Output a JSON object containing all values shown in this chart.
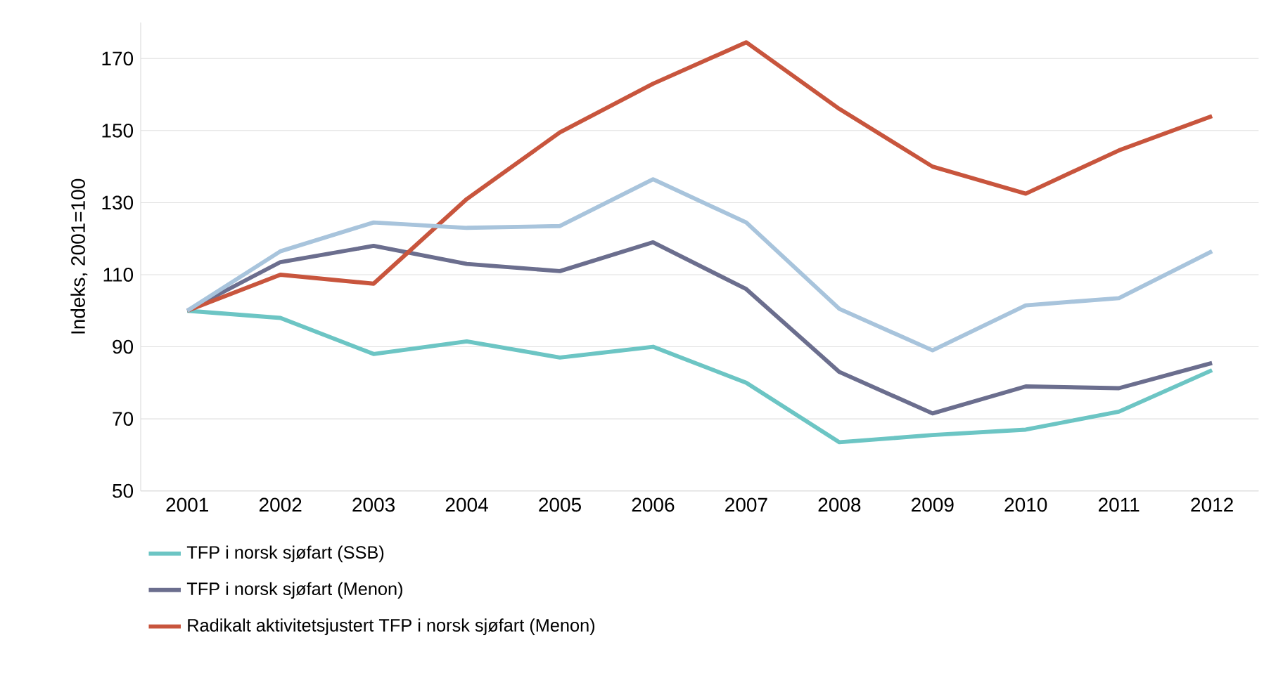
{
  "chart_data": {
    "type": "line",
    "ylabel": "Indeks, 2001=100",
    "categories": [
      "2001",
      "2002",
      "2003",
      "2004",
      "2005",
      "2006",
      "2007",
      "2008",
      "2009",
      "2010",
      "2011",
      "2012"
    ],
    "series": [
      {
        "name": "TFP i norsk sjøfart (SSB)",
        "color": "#6cc5c4",
        "values": [
          100,
          98,
          88,
          91.5,
          87,
          90,
          80,
          63.5,
          65.5,
          67,
          72,
          83.5
        ]
      },
      {
        "name": "TFP i norsk sjøfart (Menon)",
        "color": "#6b6e8e",
        "values": [
          100,
          113.5,
          118,
          113,
          111,
          119,
          106,
          83,
          71.5,
          79,
          78.5,
          85.5
        ]
      },
      {
        "name": "Radikalt aktivitetsjustert TFP i norsk sjøfart (Menon)",
        "color": "#c8553d",
        "values": [
          100,
          110,
          107.5,
          131,
          149.5,
          163,
          174.5,
          156,
          140,
          132.5,
          144.5,
          154
        ]
      },
      {
        "color": "#a8c4dc",
        "values": [
          100,
          116.5,
          124.5,
          123,
          123.5,
          136.5,
          124.5,
          100.5,
          89,
          101.5,
          103.5,
          116.5
        ]
      }
    ],
    "ylim": [
      50,
      180
    ],
    "yticks": [
      50,
      70,
      90,
      110,
      130,
      150,
      170
    ],
    "grid": "y",
    "legend": "bottom left",
    "marker": "none",
    "line_style": "solid"
  }
}
